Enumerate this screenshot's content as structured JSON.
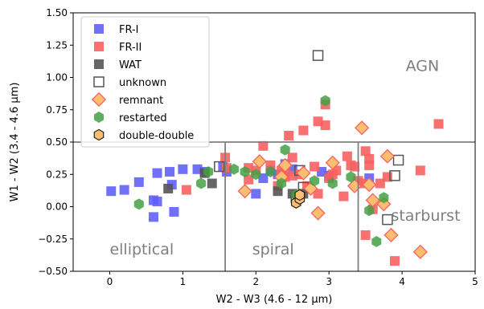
{
  "chart_data": {
    "type": "scatter",
    "title": "",
    "xlabel": "W2 - W3 (4.6 - 12 μm)",
    "ylabel": "W1 - W2 (3.4 - 4.6 μm)",
    "xlim": [
      -0.5,
      5
    ],
    "ylim": [
      -0.5,
      1.5
    ],
    "xticks": [
      "0",
      "1",
      "2",
      "3",
      "4",
      "5"
    ],
    "yticks": [
      "−0.50",
      "−0.25",
      "0.00",
      "0.25",
      "0.50",
      "0.75",
      "1.00",
      "1.25",
      "1.50"
    ],
    "grid": false,
    "legend_position": "upper-left",
    "boundaries": {
      "horizontal_y": 0.5,
      "vertical_x": [
        1.58,
        3.4
      ]
    },
    "region_labels": [
      {
        "text": "AGN",
        "x": 4.05,
        "y": 1.05
      },
      {
        "text": "elliptical",
        "x": 0.0,
        "y": -0.37
      },
      {
        "text": "spiral",
        "x": 1.95,
        "y": -0.37
      },
      {
        "text": "starburst",
        "x": 3.85,
        "y": -0.11
      }
    ],
    "series": [
      {
        "name": "FR-I",
        "marker": "square",
        "color": "#6060f8",
        "points": [
          [
            0.02,
            0.12
          ],
          [
            0.2,
            0.13
          ],
          [
            0.4,
            0.19
          ],
          [
            0.6,
            0.05
          ],
          [
            0.65,
            0.04
          ],
          [
            0.65,
            0.26
          ],
          [
            0.82,
            0.27
          ],
          [
            0.85,
            0.17
          ],
          [
            0.6,
            -0.08
          ],
          [
            0.88,
            -0.04
          ],
          [
            1.0,
            0.29
          ],
          [
            1.2,
            0.29
          ],
          [
            1.3,
            0.27
          ],
          [
            1.55,
            0.31
          ],
          [
            1.6,
            0.27
          ],
          [
            2.0,
            0.1
          ],
          [
            2.1,
            0.22
          ],
          [
            2.4,
            0.33
          ],
          [
            2.9,
            0.27
          ],
          [
            3.0,
            0.24
          ],
          [
            3.55,
            0.22
          ],
          [
            2.3,
            0.25
          ],
          [
            2.5,
            0.29
          ],
          [
            2.2,
            0.28
          ]
        ]
      },
      {
        "name": "FR-II",
        "marker": "square",
        "color": "#f86060",
        "points": [
          [
            1.05,
            0.13
          ],
          [
            1.58,
            0.38
          ],
          [
            1.6,
            0.3
          ],
          [
            1.9,
            0.3
          ],
          [
            1.9,
            0.21
          ],
          [
            2.0,
            0.28
          ],
          [
            2.1,
            0.47
          ],
          [
            2.2,
            0.32
          ],
          [
            2.3,
            0.16
          ],
          [
            2.35,
            0.28
          ],
          [
            2.4,
            0.26
          ],
          [
            2.4,
            0.23
          ],
          [
            2.45,
            0.55
          ],
          [
            2.5,
            0.38
          ],
          [
            2.5,
            0.24
          ],
          [
            2.6,
            0.25
          ],
          [
            2.7,
            0.16
          ],
          [
            2.8,
            0.31
          ],
          [
            2.85,
            0.66
          ],
          [
            2.95,
            0.79
          ],
          [
            2.95,
            0.63
          ],
          [
            3.0,
            0.22
          ],
          [
            3.05,
            0.25
          ],
          [
            3.1,
            0.28
          ],
          [
            3.2,
            0.08
          ],
          [
            3.25,
            0.39
          ],
          [
            3.3,
            0.32
          ],
          [
            3.35,
            0.31
          ],
          [
            3.4,
            0.2
          ],
          [
            3.45,
            0.18
          ],
          [
            3.5,
            0.43
          ],
          [
            3.55,
            0.37
          ],
          [
            3.55,
            0.32
          ],
          [
            3.6,
            -0.02
          ],
          [
            3.7,
            0.18
          ],
          [
            3.8,
            0.23
          ],
          [
            3.5,
            -0.22
          ],
          [
            3.9,
            -0.42
          ],
          [
            4.25,
            0.28
          ],
          [
            4.5,
            0.64
          ],
          [
            2.65,
            0.59
          ],
          [
            2.85,
            0.1
          ]
        ]
      },
      {
        "name": "WAT",
        "marker": "square",
        "color": "#555555",
        "points": [
          [
            0.8,
            0.14
          ],
          [
            1.3,
            0.26
          ],
          [
            1.4,
            0.18
          ],
          [
            2.3,
            0.12
          ],
          [
            2.5,
            0.1
          ],
          [
            2.65,
            0.1
          ]
        ]
      },
      {
        "name": "unknown",
        "marker": "open-square",
        "color": "#555555",
        "points": [
          [
            1.5,
            0.31
          ],
          [
            2.6,
            0.28
          ],
          [
            2.65,
            0.15
          ],
          [
            2.85,
            1.17
          ],
          [
            3.9,
            0.24
          ],
          [
            3.95,
            0.36
          ],
          [
            3.8,
            -0.1
          ],
          [
            2.55,
            0.07
          ]
        ]
      },
      {
        "name": "remnant",
        "marker": "diamond",
        "color": "#fdbf6f",
        "edge": "#f86060",
        "points": [
          [
            1.85,
            0.12
          ],
          [
            2.05,
            0.35
          ],
          [
            2.35,
            0.23
          ],
          [
            2.4,
            0.32
          ],
          [
            2.65,
            0.26
          ],
          [
            2.75,
            0.14
          ],
          [
            2.85,
            -0.05
          ],
          [
            3.05,
            0.34
          ],
          [
            3.35,
            0.16
          ],
          [
            3.45,
            0.61
          ],
          [
            3.55,
            0.17
          ],
          [
            3.6,
            0.05
          ],
          [
            3.75,
            0.02
          ],
          [
            3.8,
            0.39
          ],
          [
            3.85,
            -0.22
          ],
          [
            4.25,
            -0.35
          ]
        ]
      },
      {
        "name": "restarted",
        "marker": "hexagon",
        "color": "#44a044",
        "points": [
          [
            0.4,
            0.02
          ],
          [
            1.25,
            0.18
          ],
          [
            1.35,
            0.27
          ],
          [
            1.7,
            0.29
          ],
          [
            1.85,
            0.27
          ],
          [
            2.35,
            0.18
          ],
          [
            2.4,
            0.44
          ],
          [
            2.55,
            0.09
          ],
          [
            2.6,
            0.07
          ],
          [
            2.8,
            0.2
          ],
          [
            2.95,
            0.82
          ],
          [
            3.05,
            0.18
          ],
          [
            3.3,
            0.23
          ],
          [
            3.55,
            -0.03
          ],
          [
            3.65,
            -0.27
          ],
          [
            3.75,
            0.07
          ],
          [
            2.0,
            0.25
          ],
          [
            2.2,
            0.27
          ]
        ]
      },
      {
        "name": "double-double",
        "marker": "hexagon-edge",
        "color": "#fdbf6f",
        "edge": "#222222",
        "points": [
          [
            2.55,
            0.03
          ],
          [
            2.6,
            0.06
          ],
          [
            2.6,
            0.09
          ]
        ]
      }
    ]
  }
}
